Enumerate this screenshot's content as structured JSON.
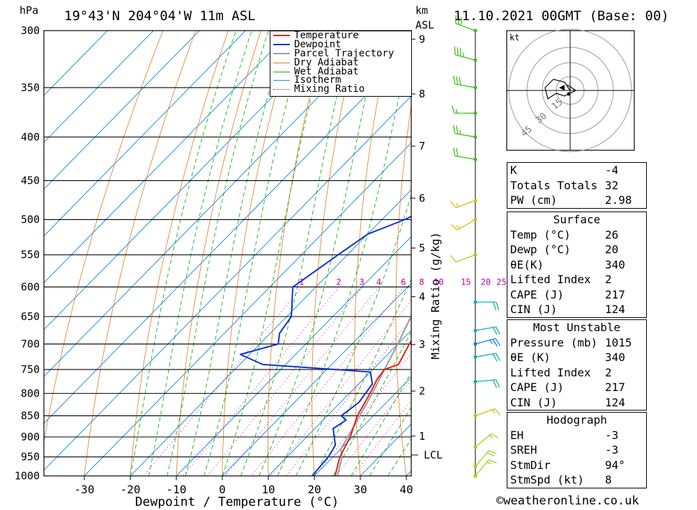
{
  "header": {
    "pressure_unit": "hPa",
    "location": "19°43'N  204°04'W  11m  ASL",
    "km_label": "km",
    "asl_label": "ASL",
    "datetime": "11.10.2021  00GMT  (Base: 00)"
  },
  "chart_data": {
    "type": "skew-t",
    "xlabel": "Dewpoint / Temperature (°C)",
    "mixing_ratio_axis_label": "Mixing Ratio (g/kg)",
    "pressure_levels": [
      300,
      350,
      400,
      450,
      500,
      550,
      600,
      650,
      700,
      750,
      800,
      850,
      900,
      950,
      1000
    ],
    "x_ticks": [
      -30,
      -20,
      -10,
      0,
      10,
      20,
      30,
      40
    ],
    "height_ticks_km": [
      1,
      2,
      3,
      4,
      5,
      6,
      7,
      8,
      9
    ],
    "lcl_label": "LCL",
    "mixing_ratio_values": [
      1,
      2,
      3,
      4,
      6,
      8,
      10,
      15,
      20,
      25
    ],
    "legend": [
      "Temperature",
      "Dewpoint",
      "Parcel Trajectory",
      "Dry Adiabat",
      "Wet Adiabat",
      "Isotherm",
      "Mixing Ratio"
    ],
    "colors": {
      "temperature": "#e02020",
      "dewpoint": "#1030d0",
      "parcel": "#a0a0a0",
      "dry_adiabat": "#e07818",
      "wet_adiabat": "#10b010",
      "isotherm": "#2090e0",
      "mixing_ratio": "#c000a0"
    },
    "temperature_profile": [
      {
        "p": 1015,
        "t": 26
      },
      {
        "p": 1000,
        "t": 24.5
      },
      {
        "p": 950,
        "t": 21.5
      },
      {
        "p": 900,
        "t": 19.5
      },
      {
        "p": 850,
        "t": 16.5
      },
      {
        "p": 800,
        "t": 14.5
      },
      {
        "p": 770,
        "t": 13
      },
      {
        "p": 750,
        "t": 12.5
      },
      {
        "p": 740,
        "t": 14.5
      },
      {
        "p": 700,
        "t": 12.5
      },
      {
        "p": 650,
        "t": 10.5
      },
      {
        "p": 600,
        "t": 6
      },
      {
        "p": 550,
        "t": 1.5
      },
      {
        "p": 530,
        "t": -1.5
      },
      {
        "p": 500,
        "t": -3.5
      },
      {
        "p": 450,
        "t": -10
      },
      {
        "p": 400,
        "t": -17
      },
      {
        "p": 350,
        "t": -25
      },
      {
        "p": 300,
        "t": -35
      }
    ],
    "dewpoint_profile": [
      {
        "p": 1015,
        "t": 20
      },
      {
        "p": 1000,
        "t": 19.5
      },
      {
        "p": 950,
        "t": 19
      },
      {
        "p": 920,
        "t": 18
      },
      {
        "p": 900,
        "t": 16
      },
      {
        "p": 880,
        "t": 14
      },
      {
        "p": 860,
        "t": 15
      },
      {
        "p": 850,
        "t": 13
      },
      {
        "p": 820,
        "t": 14
      },
      {
        "p": 780,
        "t": 13
      },
      {
        "p": 755,
        "t": 10
      },
      {
        "p": 740,
        "t": -15
      },
      {
        "p": 720,
        "t": -22
      },
      {
        "p": 700,
        "t": -16
      },
      {
        "p": 680,
        "t": -18
      },
      {
        "p": 650,
        "t": -19
      },
      {
        "p": 600,
        "t": -25
      },
      {
        "p": 550,
        "t": -22
      },
      {
        "p": 520,
        "t": -20
      },
      {
        "p": 500,
        "t": -15
      },
      {
        "p": 470,
        "t": -10
      },
      {
        "p": 455,
        "t": -21
      },
      {
        "p": 440,
        "t": -13
      },
      {
        "p": 420,
        "t": -6
      },
      {
        "p": 390,
        "t": -8
      },
      {
        "p": 370,
        "t": -12
      },
      {
        "p": 350,
        "t": -15
      },
      {
        "p": 330,
        "t": -9
      },
      {
        "p": 315,
        "t": -10
      },
      {
        "p": 300,
        "t": -10
      }
    ],
    "parcel_profile": [
      {
        "p": 1015,
        "t": 26
      },
      {
        "p": 1000,
        "t": 25
      },
      {
        "p": 950,
        "t": 22
      },
      {
        "p": 930,
        "t": 20
      },
      {
        "p": 900,
        "t": 19
      },
      {
        "p": 850,
        "t": 17
      },
      {
        "p": 800,
        "t": 15
      },
      {
        "p": 750,
        "t": 12.5
      },
      {
        "p": 700,
        "t": 10
      },
      {
        "p": 650,
        "t": 7
      },
      {
        "p": 600,
        "t": 3.5
      },
      {
        "p": 550,
        "t": -0.5
      },
      {
        "p": 500,
        "t": -5
      },
      {
        "p": 450,
        "t": -10.5
      },
      {
        "p": 400,
        "t": -17
      },
      {
        "p": 350,
        "t": -25
      },
      {
        "p": 300,
        "t": -34.5
      }
    ],
    "hodograph": {
      "unit_label": "kt",
      "ring_labels": [
        "15",
        "30",
        "45"
      ],
      "path": [
        [
          0,
          0
        ],
        [
          -2,
          -3
        ],
        [
          -6,
          -4
        ],
        [
          -9,
          -1
        ],
        [
          -8,
          3
        ],
        [
          -5,
          1
        ],
        [
          -2,
          2
        ],
        [
          2,
          0
        ],
        [
          -1,
          -2
        ]
      ]
    }
  },
  "indices": {
    "k_label": "K",
    "k_value": "-4",
    "tt_label": "Totals Totals",
    "tt_value": "32",
    "pw_label": "PW (cm)",
    "pw_value": "2.98"
  },
  "surface": {
    "title": "Surface",
    "temp_label": "Temp (°C)",
    "temp_value": "26",
    "dewp_label": "Dewp (°C)",
    "dewp_value": "20",
    "theta_label": "θE(K)",
    "theta_value": "340",
    "li_label": "Lifted Index",
    "li_value": "2",
    "cape_label": "CAPE (J)",
    "cape_value": "217",
    "cin_label": "CIN (J)",
    "cin_value": "124"
  },
  "most_unstable": {
    "title": "Most Unstable",
    "pressure_label": "Pressure (mb)",
    "pressure_value": "1015",
    "theta_label": "θE (K)",
    "theta_value": "340",
    "li_label": "Lifted Index",
    "li_value": "2",
    "cape_label": "CAPE (J)",
    "cape_value": "217",
    "cin_label": "CIN (J)",
    "cin_value": "124"
  },
  "hodograph_stats": {
    "title": "Hodograph",
    "eh_label": "EH",
    "eh_value": "-3",
    "sreh_label": "SREH",
    "sreh_value": "-3",
    "stmdir_label": "StmDir",
    "stmdir_value": "94°",
    "stmspd_label": "StmSpd (kt)",
    "stmspd_value": "8"
  },
  "credit": "©weatheronline.co.uk",
  "wind_barbs": [
    {
      "p": 300,
      "dir": 290,
      "spd": 30,
      "color": "#40c020"
    },
    {
      "p": 325,
      "dir": 285,
      "spd": 35,
      "color": "#40c020"
    },
    {
      "p": 350,
      "dir": 280,
      "spd": 30,
      "color": "#40c020"
    },
    {
      "p": 375,
      "dir": 270,
      "spd": 15,
      "color": "#40c020"
    },
    {
      "p": 400,
      "dir": 280,
      "spd": 25,
      "color": "#40c020"
    },
    {
      "p": 425,
      "dir": 280,
      "spd": 20,
      "color": "#40c020"
    },
    {
      "p": 475,
      "dir": 250,
      "spd": 15,
      "color": "#d0c010"
    },
    {
      "p": 500,
      "dir": 240,
      "spd": 15,
      "color": "#d0c010"
    },
    {
      "p": 550,
      "dir": 250,
      "spd": 10,
      "color": "#a0d020"
    },
    {
      "p": 625,
      "dir": 90,
      "spd": 20,
      "color": "#10b0b0"
    },
    {
      "p": 675,
      "dir": 80,
      "spd": 20,
      "color": "#10b0b0"
    },
    {
      "p": 700,
      "dir": 75,
      "spd": 25,
      "color": "#1080e0"
    },
    {
      "p": 725,
      "dir": 80,
      "spd": 20,
      "color": "#10b0b0"
    },
    {
      "p": 775,
      "dir": 85,
      "spd": 20,
      "color": "#10b0b0"
    },
    {
      "p": 850,
      "dir": 70,
      "spd": 15,
      "color": "#d0c010"
    },
    {
      "p": 925,
      "dir": 50,
      "spd": 15,
      "color": "#a0d020"
    },
    {
      "p": 975,
      "dir": 40,
      "spd": 20,
      "color": "#a0d020"
    },
    {
      "p": 1000,
      "dir": 40,
      "spd": 15,
      "color": "#a0d020"
    }
  ]
}
